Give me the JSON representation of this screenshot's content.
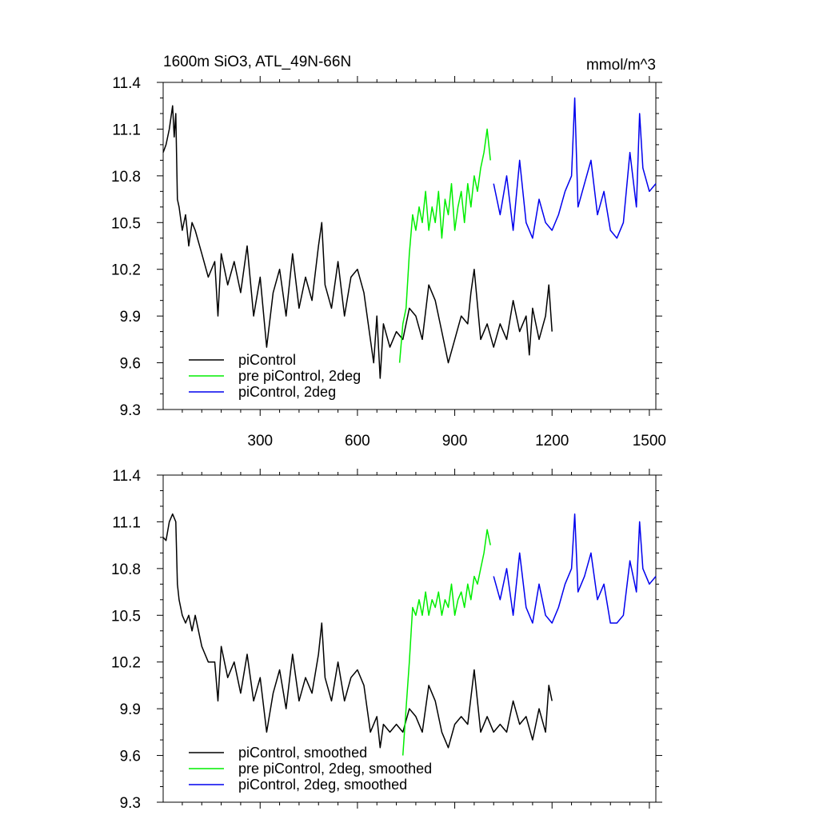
{
  "header": {
    "title": "1600m SiO3, ATL_49N-66N",
    "units": "mmol/m^3"
  },
  "chart_data": [
    {
      "type": "line",
      "panel": "raw",
      "title": "1600m SiO3, ATL_49N-66N",
      "units": "mmol/m^3",
      "xlim": [
        1,
        1520
      ],
      "ylim": [
        9.3,
        11.4
      ],
      "x_ticks": [
        300,
        600,
        900,
        1200,
        1500
      ],
      "x_tick_labels": [
        "300",
        "600",
        "900",
        "1200",
        "1500"
      ],
      "y_ticks": [
        9.3,
        9.6,
        9.9,
        10.2,
        10.5,
        10.8,
        11.1,
        11.4
      ],
      "y_tick_labels": [
        "9.3",
        "9.6",
        "9.9",
        "10.2",
        "10.5",
        "10.8",
        "11.1",
        "11.4"
      ],
      "legend_position": "bottom-left",
      "series": [
        {
          "name": "piControl",
          "color": "#000000",
          "x": [
            1,
            10,
            20,
            30,
            35,
            40,
            45,
            50,
            60,
            70,
            80,
            90,
            100,
            120,
            140,
            160,
            170,
            180,
            200,
            220,
            240,
            260,
            280,
            300,
            320,
            340,
            360,
            380,
            400,
            420,
            440,
            460,
            480,
            490,
            500,
            520,
            540,
            560,
            580,
            600,
            620,
            640,
            650,
            660,
            670,
            680,
            700,
            720,
            740,
            760,
            780,
            800,
            820,
            840,
            860,
            880,
            900,
            920,
            940,
            950,
            960,
            980,
            1000,
            1020,
            1040,
            1060,
            1080,
            1100,
            1120,
            1130,
            1140,
            1160,
            1180,
            1190,
            1200
          ],
          "y": [
            10.95,
            11.0,
            11.1,
            11.25,
            11.05,
            11.2,
            10.65,
            10.6,
            10.45,
            10.55,
            10.35,
            10.5,
            10.45,
            10.3,
            10.15,
            10.25,
            9.9,
            10.3,
            10.1,
            10.25,
            10.05,
            10.35,
            9.9,
            10.15,
            9.7,
            10.05,
            10.2,
            9.9,
            10.3,
            9.95,
            10.15,
            10.0,
            10.35,
            10.5,
            10.1,
            9.95,
            10.25,
            9.9,
            10.15,
            10.2,
            10.05,
            9.75,
            9.6,
            9.9,
            9.5,
            9.85,
            9.7,
            9.8,
            9.75,
            9.95,
            9.9,
            9.75,
            10.1,
            10.0,
            9.8,
            9.6,
            9.75,
            9.9,
            9.85,
            10.05,
            10.2,
            9.75,
            9.85,
            9.7,
            9.85,
            9.75,
            10.0,
            9.8,
            9.9,
            9.65,
            9.95,
            9.75,
            9.9,
            10.1,
            9.8
          ]
        },
        {
          "name": "pre piControl, 2deg",
          "color": "#00ee00",
          "x": [
            730,
            740,
            750,
            760,
            770,
            780,
            790,
            800,
            810,
            820,
            830,
            840,
            850,
            860,
            870,
            880,
            890,
            900,
            910,
            920,
            930,
            940,
            950,
            960,
            970,
            980,
            990,
            1000,
            1010
          ],
          "y": [
            9.6,
            9.85,
            9.95,
            10.3,
            10.55,
            10.45,
            10.6,
            10.5,
            10.7,
            10.45,
            10.6,
            10.5,
            10.7,
            10.4,
            10.65,
            10.55,
            10.75,
            10.45,
            10.6,
            10.7,
            10.5,
            10.75,
            10.6,
            10.8,
            10.7,
            10.85,
            10.95,
            11.1,
            10.9
          ]
        },
        {
          "name": "piControl, 2deg",
          "color": "#0000ee",
          "x": [
            1020,
            1040,
            1060,
            1080,
            1100,
            1120,
            1140,
            1160,
            1180,
            1200,
            1220,
            1240,
            1260,
            1270,
            1280,
            1300,
            1320,
            1340,
            1360,
            1380,
            1400,
            1420,
            1440,
            1460,
            1470,
            1480,
            1500,
            1520
          ],
          "y": [
            10.75,
            10.55,
            10.8,
            10.45,
            10.9,
            10.5,
            10.4,
            10.65,
            10.5,
            10.45,
            10.55,
            10.7,
            10.8,
            11.3,
            10.6,
            10.75,
            10.9,
            10.55,
            10.7,
            10.45,
            10.4,
            10.5,
            10.95,
            10.6,
            11.2,
            10.85,
            10.7,
            10.75
          ]
        }
      ]
    },
    {
      "type": "line",
      "panel": "smoothed",
      "xlim": [
        1,
        1520
      ],
      "ylim": [
        9.3,
        11.4
      ],
      "x_ticks": [
        300,
        600,
        900,
        1200,
        1500
      ],
      "x_tick_labels": [],
      "y_ticks": [
        9.3,
        9.6,
        9.9,
        10.2,
        10.5,
        10.8,
        11.1,
        11.4
      ],
      "y_tick_labels": [
        "9.3",
        "9.6",
        "9.9",
        "10.2",
        "10.5",
        "10.8",
        "11.1",
        "11.4"
      ],
      "legend_position": "bottom-left",
      "series": [
        {
          "name": "piControl, smoothed",
          "color": "#000000",
          "x": [
            1,
            10,
            20,
            30,
            40,
            45,
            50,
            60,
            70,
            80,
            90,
            100,
            120,
            140,
            160,
            170,
            180,
            200,
            220,
            240,
            260,
            280,
            300,
            320,
            340,
            360,
            380,
            400,
            420,
            440,
            460,
            480,
            490,
            500,
            520,
            540,
            560,
            580,
            600,
            620,
            640,
            660,
            670,
            680,
            700,
            720,
            740,
            760,
            780,
            800,
            820,
            840,
            860,
            880,
            900,
            920,
            940,
            960,
            980,
            1000,
            1020,
            1040,
            1060,
            1080,
            1100,
            1120,
            1140,
            1160,
            1180,
            1190,
            1200
          ],
          "y": [
            11.0,
            10.98,
            11.1,
            11.15,
            11.1,
            10.7,
            10.6,
            10.5,
            10.45,
            10.5,
            10.4,
            10.5,
            10.3,
            10.2,
            10.2,
            9.95,
            10.3,
            10.1,
            10.2,
            10.0,
            10.25,
            9.95,
            10.1,
            9.75,
            10.0,
            10.15,
            9.9,
            10.25,
            9.95,
            10.1,
            10.0,
            10.25,
            10.45,
            10.1,
            9.95,
            10.2,
            9.95,
            10.1,
            10.15,
            10.05,
            9.75,
            9.85,
            9.65,
            9.8,
            9.75,
            9.8,
            9.75,
            9.9,
            9.85,
            9.75,
            10.05,
            9.95,
            9.75,
            9.65,
            9.8,
            9.85,
            9.8,
            10.15,
            9.75,
            9.85,
            9.75,
            9.8,
            9.75,
            9.95,
            9.8,
            9.85,
            9.7,
            9.9,
            9.75,
            10.05,
            9.95
          ]
        },
        {
          "name": "pre piControl, 2deg, smoothed",
          "color": "#00ee00",
          "x": [
            740,
            750,
            760,
            770,
            780,
            790,
            800,
            810,
            820,
            830,
            840,
            850,
            860,
            870,
            880,
            890,
            900,
            910,
            920,
            930,
            940,
            950,
            960,
            970,
            980,
            990,
            1000,
            1010
          ],
          "y": [
            9.6,
            9.9,
            10.2,
            10.55,
            10.5,
            10.6,
            10.5,
            10.65,
            10.5,
            10.6,
            10.55,
            10.65,
            10.5,
            10.6,
            10.55,
            10.7,
            10.5,
            10.6,
            10.65,
            10.55,
            10.7,
            10.6,
            10.75,
            10.7,
            10.8,
            10.9,
            11.05,
            10.95
          ]
        },
        {
          "name": "piControl, 2deg, smoothed",
          "color": "#0000ee",
          "x": [
            1020,
            1040,
            1060,
            1080,
            1100,
            1120,
            1140,
            1160,
            1180,
            1200,
            1220,
            1240,
            1260,
            1270,
            1280,
            1300,
            1320,
            1340,
            1360,
            1380,
            1400,
            1420,
            1440,
            1460,
            1470,
            1480,
            1500,
            1520
          ],
          "y": [
            10.75,
            10.6,
            10.8,
            10.5,
            10.9,
            10.55,
            10.45,
            10.7,
            10.5,
            10.45,
            10.55,
            10.7,
            10.8,
            11.15,
            10.65,
            10.75,
            10.9,
            10.6,
            10.7,
            10.45,
            10.45,
            10.5,
            10.85,
            10.65,
            11.1,
            10.8,
            10.7,
            10.75
          ]
        }
      ]
    }
  ]
}
